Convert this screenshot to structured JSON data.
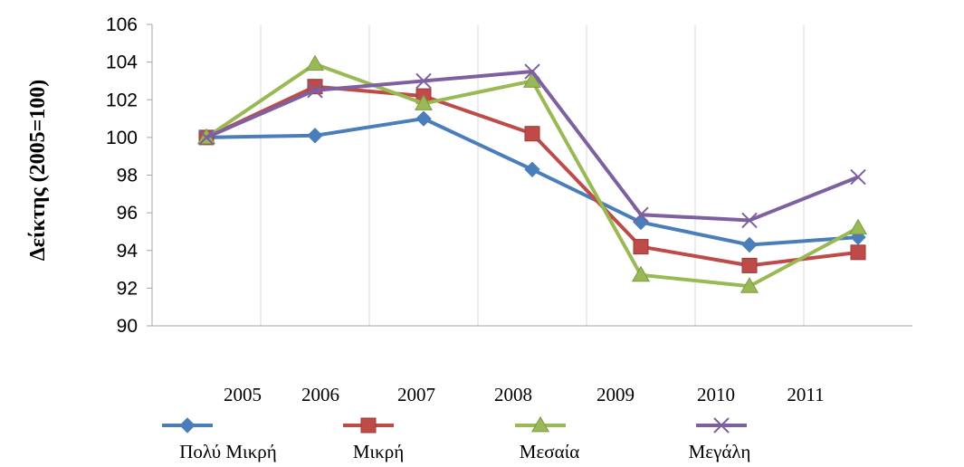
{
  "chart_data": {
    "type": "line",
    "ylabel": "Δείκτης (2005=100)",
    "xlabel": "",
    "ylim": [
      90,
      106
    ],
    "yticks": [
      90,
      92,
      94,
      96,
      98,
      100,
      102,
      104,
      106
    ],
    "categories": [
      "2005",
      "2006",
      "2007",
      "2008",
      "2009",
      "2010",
      "2011"
    ],
    "x_tick_labels": [
      "2005",
      "2006",
      "2007",
      "2008",
      "2009",
      "2010",
      "2011"
    ],
    "grid": "vertical",
    "legend": "bottom",
    "series": [
      {
        "name": "Πολύ Μικρή",
        "color": "#4a7ebb",
        "marker": "diamond",
        "values": [
          100.0,
          100.1,
          101.0,
          98.3,
          95.5,
          94.3,
          94.7
        ]
      },
      {
        "name": "Μικρή",
        "color": "#be4b48",
        "marker": "square",
        "values": [
          100.0,
          102.7,
          102.2,
          100.2,
          94.2,
          93.2,
          93.9
        ]
      },
      {
        "name": "Μεσαία",
        "color": "#98b954",
        "marker": "triangle",
        "values": [
          100.0,
          103.9,
          101.8,
          103.0,
          92.7,
          92.1,
          95.2
        ]
      },
      {
        "name": "Μεγάλη",
        "color": "#7d60a0",
        "marker": "x",
        "values": [
          100.0,
          102.5,
          103.0,
          103.5,
          95.9,
          95.6,
          97.9
        ]
      }
    ]
  }
}
